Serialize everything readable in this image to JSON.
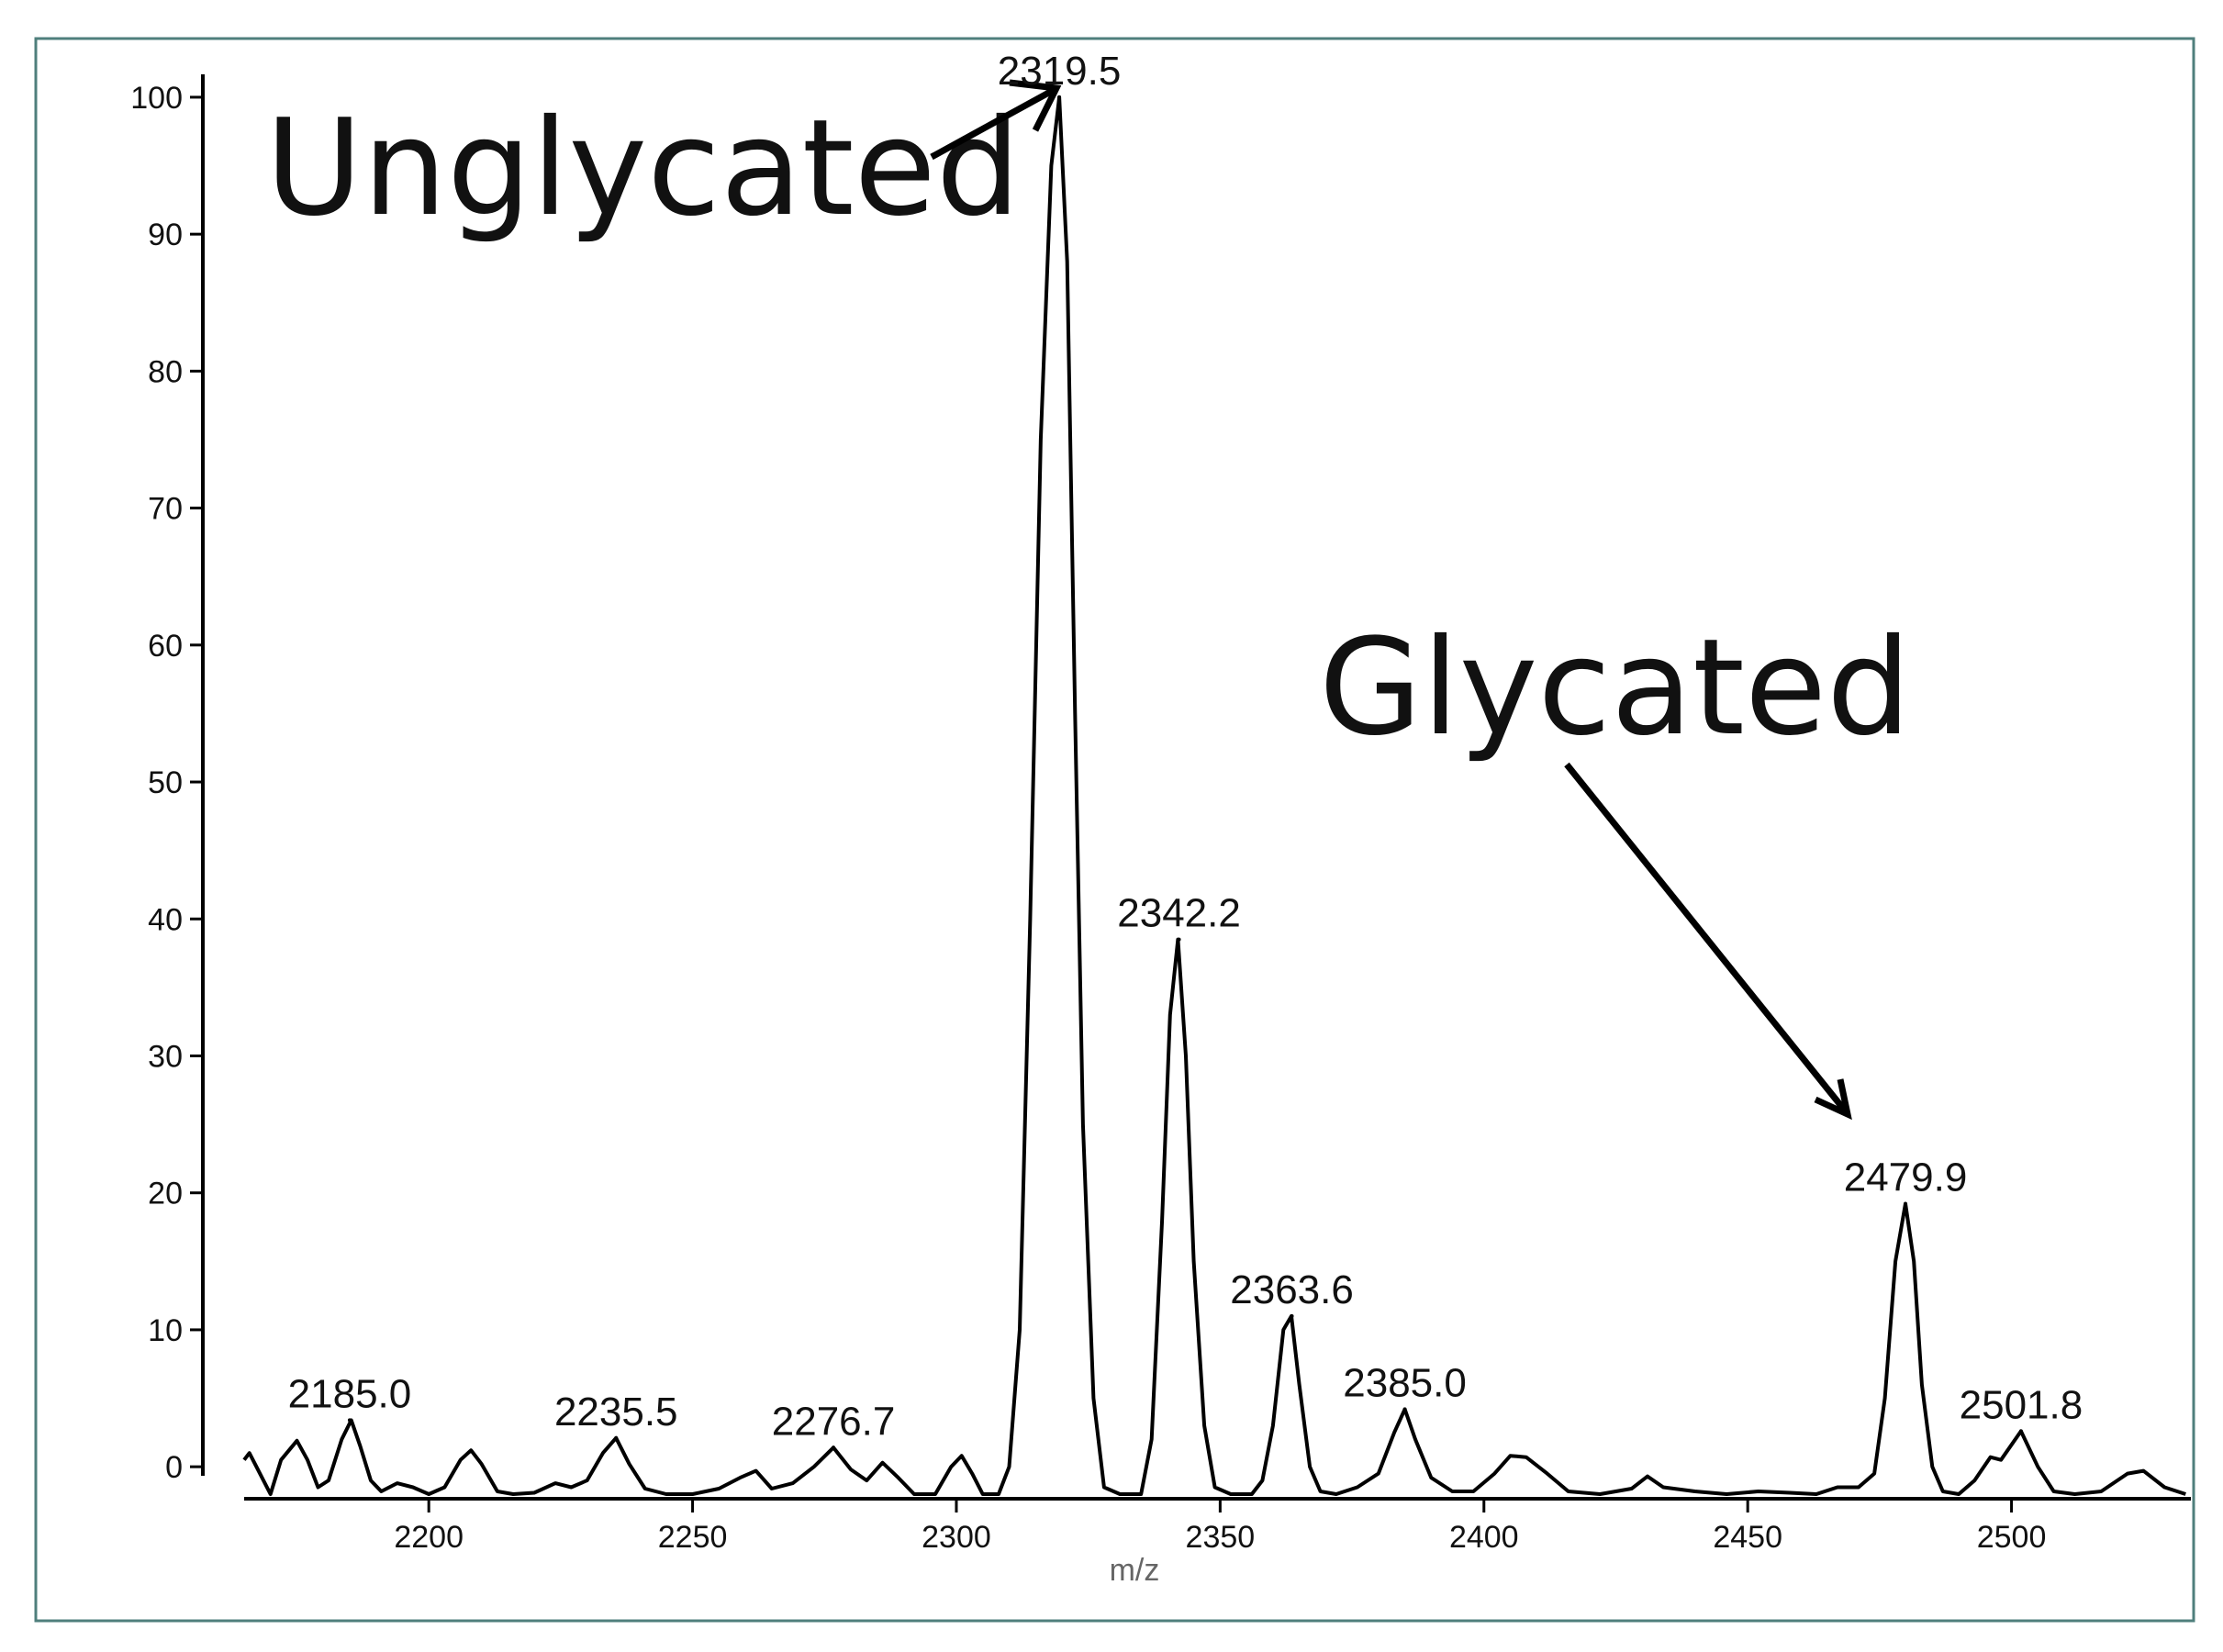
{
  "chart_data": {
    "type": "line",
    "x_label": "m/z",
    "annotations": [
      "Unglycated",
      "Glycated"
    ],
    "color": "#000000",
    "x": [
      2165,
      2166,
      2168,
      2170,
      2172,
      2175,
      2177,
      2179,
      2181,
      2183.5,
      2185.3,
      2187,
      2189,
      2191,
      2194,
      2197,
      2200,
      2203,
      2206,
      2208,
      2210,
      2213,
      2216,
      2220,
      2224,
      2227,
      2230,
      2233,
      2235.5,
      2238,
      2241,
      2245,
      2250,
      2255,
      2259,
      2262,
      2265,
      2269,
      2273,
      2276.7,
      2280,
      2283,
      2286,
      2289,
      2292,
      2296,
      2299,
      2301,
      2303,
      2305,
      2308,
      2310,
      2312,
      2314,
      2316,
      2318,
      2319.5,
      2321,
      2322.5,
      2324,
      2326,
      2328,
      2331,
      2335,
      2337,
      2339,
      2340.5,
      2342,
      2343.5,
      2345,
      2347,
      2349,
      2352,
      2356,
      2358,
      2360,
      2362,
      2363.5,
      2365,
      2367,
      2369,
      2372,
      2376,
      2380,
      2383,
      2385,
      2387,
      2390,
      2394,
      2398,
      2402,
      2405,
      2408,
      2412,
      2416,
      2422,
      2428,
      2431,
      2434,
      2440,
      2446,
      2452,
      2458,
      2463,
      2467,
      2471,
      2474,
      2476,
      2478,
      2479.9,
      2481.5,
      2483,
      2485,
      2487,
      2490,
      2493,
      2496,
      2498,
      2501.8,
      2505,
      2508,
      2512,
      2517,
      2522,
      2525,
      2529,
      2533
    ],
    "values": [
      0.5,
      1,
      -0.5,
      -2,
      0.5,
      1.9,
      0.5,
      -1.5,
      -1,
      2,
      3.4,
      1.5,
      -1,
      -1.8,
      -1.2,
      -1.5,
      -2,
      -1.5,
      0.5,
      1.2,
      0.2,
      -1.8,
      -2,
      -1.9,
      -1.2,
      -1.5,
      -1,
      1,
      2.1,
      0.2,
      -1.6,
      -2,
      -2,
      -1.6,
      -0.8,
      -0.3,
      -1.6,
      -1.2,
      0,
      1.4,
      -0.2,
      -1,
      0.3,
      -0.8,
      -2,
      -2,
      0,
      0.8,
      -0.5,
      -2,
      -2,
      0,
      10,
      40,
      75,
      95,
      100,
      88,
      55,
      25,
      5,
      -1.5,
      -2,
      -2,
      2,
      18,
      33,
      38.5,
      30,
      15,
      3,
      -1.5,
      -2,
      -2,
      -1,
      3,
      10,
      11,
      6,
      0,
      -1.8,
      -2,
      -1.5,
      -0.5,
      2.5,
      4.2,
      2,
      -0.8,
      -1.8,
      -1.8,
      -0.5,
      0.8,
      0.7,
      -0.5,
      -1.8,
      -2,
      -1.6,
      -0.7,
      -1.5,
      -1.8,
      -2,
      -1.8,
      -1.9,
      -2,
      -1.5,
      -1.5,
      -0.5,
      5,
      15,
      19.2,
      15,
      6,
      0,
      -1.8,
      -2,
      -1,
      0.7,
      0.5,
      2.6,
      0,
      -1.8,
      -2,
      -1.8,
      -0.5,
      -0.3,
      -1.5,
      -2
    ],
    "peaks": {
      "x": [
        2185.0,
        2235.5,
        2276.7,
        2319.5,
        2342.2,
        2363.6,
        2385.0,
        2479.9,
        2501.8
      ],
      "y": [
        3.4,
        2.1,
        1.4,
        100,
        38.5,
        11,
        4.2,
        19.2,
        2.6
      ],
      "labels": [
        "2185.0",
        "2235.5",
        "2276.7",
        "2319.5",
        "2342.2",
        "2363.6",
        "2385.0",
        "2479.9",
        "2501.8"
      ]
    },
    "xlim": [
      2165,
      2534
    ],
    "xticks": [
      2200,
      2250,
      2300,
      2350,
      2400,
      2450,
      2500
    ],
    "ylim": [
      -2,
      101
    ],
    "yticks": [
      0,
      10,
      20,
      30,
      40,
      50,
      60,
      70,
      80,
      90,
      100
    ]
  }
}
